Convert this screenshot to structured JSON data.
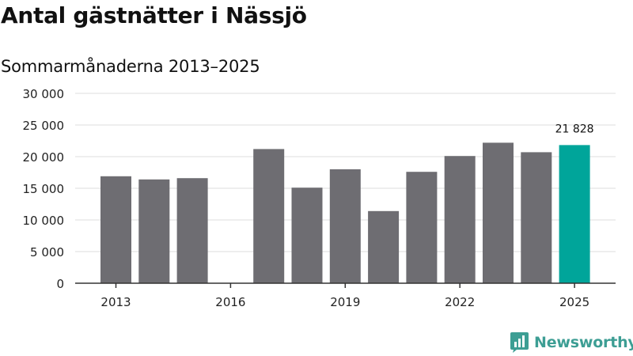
{
  "title": "Antal gästnätter i Nässjö",
  "subtitle": "Sommarmånaderna 2013–2025",
  "brand": {
    "name": "Newsworthy"
  },
  "colors": {
    "bar": "#6e6d72",
    "highlight": "#00a59a",
    "grid": "#dddddd",
    "brand": "#3d9e94"
  },
  "chart_data": {
    "type": "bar",
    "title": "Antal gästnätter i Nässjö",
    "subtitle": "Sommarmånaderna 2013–2025",
    "categories": [
      2013,
      2014,
      2015,
      2016,
      2017,
      2018,
      2019,
      2020,
      2021,
      2022,
      2023,
      2024,
      2025
    ],
    "values": [
      16900,
      16400,
      16600,
      null,
      21200,
      15100,
      18000,
      11400,
      17600,
      20100,
      22200,
      20700,
      21828
    ],
    "x_tick_labels": [
      "2013",
      "2016",
      "2019",
      "2022",
      "2025"
    ],
    "y_ticks": [
      0,
      5000,
      10000,
      15000,
      20000,
      25000,
      30000
    ],
    "y_tick_labels": [
      "0",
      "5 000",
      "10 000",
      "15 000",
      "20 000",
      "25 000",
      "30 000"
    ],
    "ylim": [
      0,
      30000
    ],
    "highlight": {
      "category": 2025,
      "label": "21 828"
    },
    "grid": true,
    "legend": "none"
  }
}
